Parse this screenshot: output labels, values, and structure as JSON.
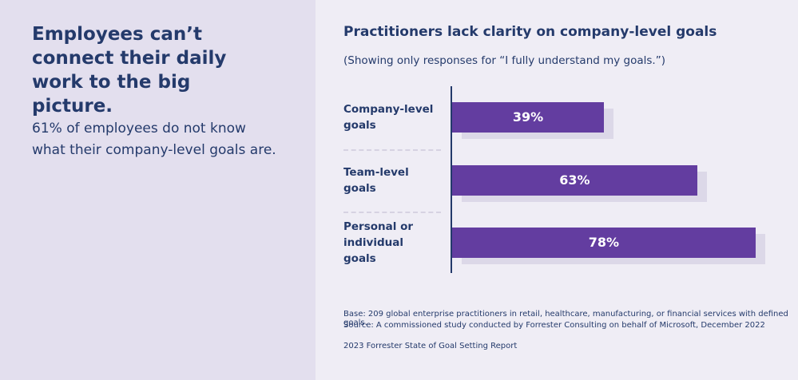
{
  "headline": "Employees can’t connect their daily work to the big picture.",
  "body": "61% of employees do not know what their company-level goals are.",
  "chart_data": {
    "type": "bar",
    "orientation": "horizontal",
    "title": "Practitioners lack clarity on company-level goals",
    "subtitle": "(Showing only responses for “I fully understand my goals.”)",
    "categories": [
      "Company-level goals",
      "Team-level goals",
      "Personal or individual goals"
    ],
    "values": [
      39,
      63,
      78
    ],
    "value_labels": [
      "39%",
      "63%",
      "78%"
    ],
    "color": "#633da0"
  },
  "footnotes": [
    "Base: 209 global enterprise practitioners in retail, healthcare, manufacturing, or financial services with defined goals.",
    "Source: A commissioned study conducted by Forrester Consulting on behalf of Microsoft, December 2022",
    "2023 Forrester State of Goal Setting Report"
  ]
}
